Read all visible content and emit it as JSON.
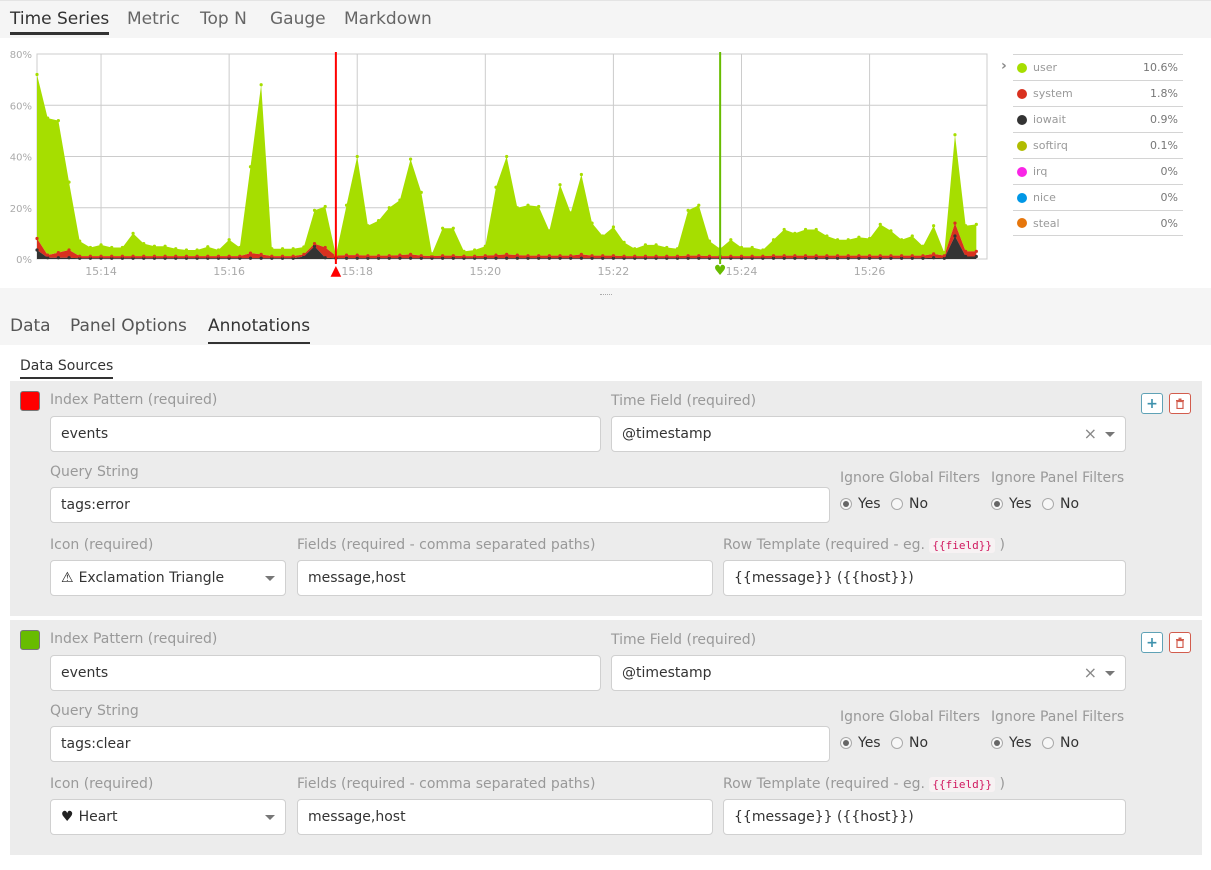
{
  "chart_tabs": [
    {
      "label": "Time Series",
      "active": true
    },
    {
      "label": "Metric"
    },
    {
      "label": "Top N"
    },
    {
      "label": "Gauge"
    },
    {
      "label": "Markdown"
    }
  ],
  "chart_data": {
    "type": "area",
    "stacked": true,
    "ylim": [
      0,
      80
    ],
    "ytick_labels": [
      "0%",
      "20%",
      "40%",
      "60%",
      "80%"
    ],
    "yticks": [
      0,
      20,
      40,
      60,
      80
    ],
    "xlim": [
      "15:13:00",
      "15:27:50"
    ],
    "xtick_labels": [
      "15:14",
      "15:16",
      "15:18",
      "15:20",
      "15:22",
      "15:24",
      "15:26"
    ],
    "x_start": "15:13:00",
    "x_step_seconds": 10,
    "grid": true,
    "legend_position": "right",
    "series": [
      {
        "name": "iowait",
        "color": "#333333",
        "values": [
          3.5,
          0.5,
          0.5,
          0.5,
          0.3,
          0.3,
          0.3,
          0.3,
          0.3,
          0.3,
          0.3,
          0.3,
          0.3,
          0.3,
          0.3,
          0.3,
          0.3,
          0.3,
          0.3,
          0.3,
          0.3,
          0.3,
          0.3,
          0.3,
          0.3,
          1,
          5,
          0.5,
          0.3,
          0.3,
          0.3,
          0.3,
          0.3,
          0.3,
          0.3,
          0.3,
          0.3,
          0.3,
          0.3,
          0.3,
          0.3,
          0.3,
          0.3,
          0.3,
          0.3,
          0.3,
          0.3,
          0.3,
          0.3,
          0.3,
          0.3,
          0.3,
          0.3,
          0.3,
          0.3,
          0.3,
          0.3,
          0.3,
          0.3,
          0.3,
          0.3,
          0.3,
          0.3,
          0.3,
          0.3,
          0.3,
          0.3,
          0.3,
          0.3,
          0.3,
          0.3,
          0.3,
          0.3,
          0.3,
          0.3,
          0.3,
          0.3,
          0.3,
          0.3,
          0.3,
          0.3,
          0.3,
          0.3,
          0.3,
          0.5,
          0.3,
          9,
          1,
          1
        ]
      },
      {
        "name": "system",
        "color": "#d9311f",
        "values": [
          4.5,
          1,
          2,
          3,
          0.8,
          0.8,
          0.8,
          0.8,
          0.8,
          0.8,
          0.8,
          0.8,
          0.8,
          0.8,
          0.8,
          0.8,
          0.8,
          0.8,
          0.8,
          0.8,
          2,
          1.5,
          0.8,
          0.8,
          0.8,
          0.8,
          1,
          4,
          1,
          1.2,
          1.2,
          1,
          1,
          1,
          1.2,
          1.5,
          1,
          0.8,
          1,
          1,
          0.8,
          0.8,
          1,
          1.2,
          1.5,
          1.2,
          1,
          1,
          1,
          1,
          1,
          1.5,
          1,
          1,
          1,
          0.8,
          0.8,
          0.8,
          0.8,
          0.8,
          0.8,
          1,
          1,
          0.8,
          0.8,
          0.8,
          0.8,
          0.8,
          0.8,
          1,
          1,
          1,
          1,
          1,
          1,
          1,
          1,
          1,
          1,
          1,
          1,
          1,
          1,
          1,
          1.5,
          1,
          5,
          2,
          2
        ]
      },
      {
        "name": "user",
        "color": "#a6de00",
        "values": [
          64,
          53.5,
          51.5,
          26.5,
          5.9,
          3.4,
          4.4,
          3.4,
          3.4,
          8.9,
          4.9,
          3.9,
          3.9,
          2.9,
          2.4,
          2.4,
          3.7,
          2.4,
          6.4,
          3.4,
          33.7,
          66.2,
          2.9,
          2.9,
          2.9,
          2.9,
          13,
          16,
          0.2,
          19.5,
          38.5,
          11.7,
          13.7,
          18.7,
          21.5,
          37.2,
          24.7,
          0.9,
          10.7,
          10.7,
          1.9,
          2.4,
          3.7,
          26.5,
          38.2,
          18.5,
          19.7,
          19.2,
          9.7,
          27.7,
          16.7,
          31.2,
          12.7,
          7.7,
          11.2,
          5.4,
          2.9,
          4.4,
          4.4,
          3.4,
          2.9,
          17.7,
          19.7,
          5.9,
          2.9,
          6.4,
          3.4,
          3.4,
          2.4,
          6.2,
          10.2,
          8.7,
          10.2,
          10.2,
          7.7,
          6.2,
          6.2,
          7.2,
          6.7,
          12.2,
          9.7,
          6.2,
          7.7,
          3.7,
          11,
          1.2,
          34.5,
          10,
          10.5
        ]
      }
    ],
    "legend": [
      {
        "name": "user",
        "value": "10.6%",
        "color": "#a6de00"
      },
      {
        "name": "system",
        "value": "1.8%",
        "color": "#d9311f"
      },
      {
        "name": "iowait",
        "value": "0.9%",
        "color": "#333333"
      },
      {
        "name": "softirq",
        "value": "0.1%",
        "color": "#b0bc00"
      },
      {
        "name": "irq",
        "value": "0%",
        "color": "#f925e6"
      },
      {
        "name": "nice",
        "value": "0%",
        "color": "#0097e6"
      },
      {
        "name": "steal",
        "value": "0%",
        "color": "#e6760c"
      }
    ],
    "annotations": [
      {
        "time": "15:17:40",
        "color": "#ff0000",
        "icon": "exclamation-triangle-icon"
      },
      {
        "time": "15:23:40",
        "color": "#68bc00",
        "icon": "heart-icon"
      }
    ]
  },
  "editor_tabs": [
    {
      "label": "Data"
    },
    {
      "label": "Panel Options"
    },
    {
      "label": "Annotations",
      "active": true
    }
  ],
  "sub_tab": "Data Sources",
  "labels": {
    "index_pattern": "Index Pattern (required)",
    "time_field": "Time Field (required)",
    "query_string": "Query String",
    "ignore_global": "Ignore Global Filters",
    "ignore_panel": "Ignore Panel Filters",
    "icon": "Icon (required)",
    "fields": "Fields (required - comma separated paths)",
    "row_template": "Row Template (required - eg.",
    "row_template_code": "{{field}}",
    "row_template_end": ")",
    "yes": "Yes",
    "no": "No",
    "clear": "×",
    "add": "+"
  },
  "annotations": [
    {
      "color": "#ff0000",
      "index_pattern": "events",
      "time_field": "@timestamp",
      "query_string": "tags:error",
      "ignore_global": "yes",
      "ignore_panel": "yes",
      "icon_glyph": "⚠",
      "icon_label": "Exclamation Triangle",
      "fields": "message,host",
      "row_template": "{{message}} ({{host}})"
    },
    {
      "color": "#68bc00",
      "index_pattern": "events",
      "time_field": "@timestamp",
      "query_string": "tags:clear",
      "ignore_global": "yes",
      "ignore_panel": "yes",
      "icon_glyph": "♥",
      "icon_label": "Heart",
      "fields": "message,host",
      "row_template": "{{message}} ({{host}})"
    }
  ]
}
